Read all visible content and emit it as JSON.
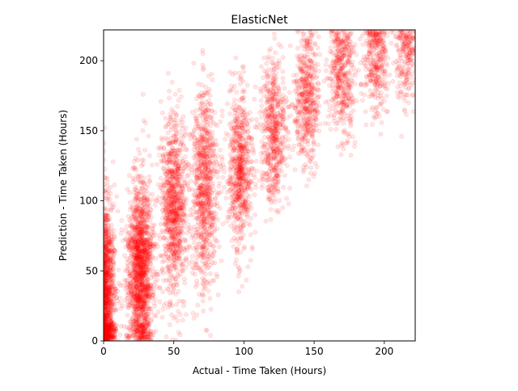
{
  "chart_data": {
    "type": "scatter",
    "title": "ElasticNet",
    "xlabel": "Actual - Time Taken (Hours)",
    "ylabel": "Prediction - Time Taken (Hours)",
    "xlim": [
      0,
      222
    ],
    "ylim": [
      0,
      222
    ],
    "xticks": [
      0,
      50,
      100,
      150,
      200
    ],
    "yticks": [
      0,
      50,
      100,
      150,
      200
    ],
    "grid": false,
    "marker_color": "#ff0000",
    "marker_alpha": 0.1,
    "clusters": [
      {
        "actual": 2,
        "actual_spread": 3.5,
        "pred_center": 30,
        "pred_spread": 35,
        "pred_min": 0,
        "pred_max": 180,
        "count": 1100
      },
      {
        "actual": 26,
        "actual_spread": 4.5,
        "pred_center": 50,
        "pred_spread": 33,
        "pred_min": 0,
        "pred_max": 190,
        "count": 1500
      },
      {
        "actual": 50,
        "actual_spread": 4.5,
        "pred_center": 95,
        "pred_spread": 32,
        "pred_min": 0,
        "pred_max": 222,
        "count": 900
      },
      {
        "actual": 72,
        "actual_spread": 4.5,
        "pred_center": 110,
        "pred_spread": 35,
        "pred_min": 0,
        "pred_max": 222,
        "count": 800
      },
      {
        "actual": 97,
        "actual_spread": 4.5,
        "pred_center": 125,
        "pred_spread": 28,
        "pred_min": 30,
        "pred_max": 222,
        "count": 650
      },
      {
        "actual": 121,
        "actual_spread": 4.5,
        "pred_center": 150,
        "pred_spread": 26,
        "pred_min": 50,
        "pred_max": 222,
        "count": 550
      },
      {
        "actual": 145,
        "actual_spread": 4.5,
        "pred_center": 175,
        "pred_spread": 25,
        "pred_min": 80,
        "pred_max": 222,
        "count": 480
      },
      {
        "actual": 170,
        "actual_spread": 4.5,
        "pred_center": 190,
        "pred_spread": 22,
        "pred_min": 95,
        "pred_max": 222,
        "count": 420
      },
      {
        "actual": 194,
        "actual_spread": 4.5,
        "pred_center": 200,
        "pred_spread": 20,
        "pred_min": 130,
        "pred_max": 222,
        "count": 330
      },
      {
        "actual": 216,
        "actual_spread": 4.0,
        "pred_center": 205,
        "pred_spread": 18,
        "pred_min": 110,
        "pred_max": 222,
        "count": 220
      }
    ]
  }
}
